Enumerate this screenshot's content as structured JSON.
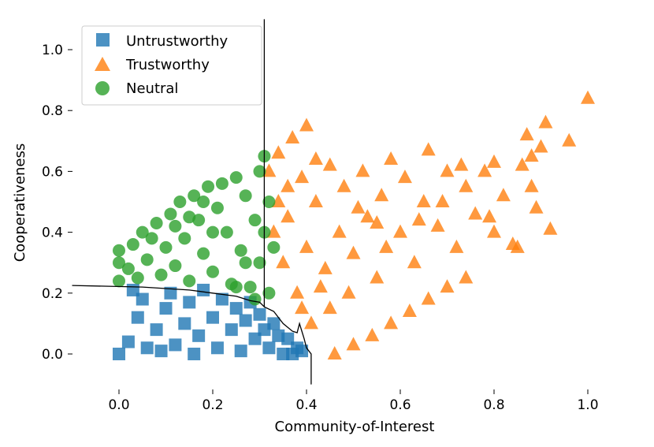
{
  "chart_data": {
    "type": "scatter",
    "title": "",
    "xlabel": "Community-of-Interest",
    "ylabel": "Cooperativeness",
    "xlim": [
      -0.1,
      1.02
    ],
    "ylim": [
      -0.1,
      1.1
    ],
    "xticks": [
      0.0,
      0.2,
      0.4,
      0.6,
      0.8,
      1.0
    ],
    "xtick_labels": [
      "0.0",
      "0.2",
      "0.4",
      "0.6",
      "0.8",
      "1.0"
    ],
    "yticks": [
      0.0,
      0.2,
      0.4,
      0.6,
      0.8,
      1.0
    ],
    "ytick_labels": [
      "0.0",
      "0.2",
      "0.4",
      "0.6",
      "0.8",
      "1.0"
    ],
    "legend_position": "top-left",
    "grid": false,
    "series": [
      {
        "name": "Untrustworthy",
        "marker": "square",
        "color": "#1f77b4",
        "points": [
          [
            0.0,
            0.0
          ],
          [
            0.02,
            0.04
          ],
          [
            0.04,
            0.12
          ],
          [
            0.05,
            0.18
          ],
          [
            0.06,
            0.02
          ],
          [
            0.08,
            0.08
          ],
          [
            0.1,
            0.15
          ],
          [
            0.11,
            0.2
          ],
          [
            0.12,
            0.03
          ],
          [
            0.14,
            0.1
          ],
          [
            0.15,
            0.17
          ],
          [
            0.17,
            0.06
          ],
          [
            0.18,
            0.21
          ],
          [
            0.2,
            0.12
          ],
          [
            0.21,
            0.02
          ],
          [
            0.22,
            0.18
          ],
          [
            0.24,
            0.08
          ],
          [
            0.25,
            0.15
          ],
          [
            0.26,
            0.01
          ],
          [
            0.27,
            0.11
          ],
          [
            0.28,
            0.17
          ],
          [
            0.29,
            0.05
          ],
          [
            0.3,
            0.13
          ],
          [
            0.31,
            0.08
          ],
          [
            0.32,
            0.02
          ],
          [
            0.33,
            0.1
          ],
          [
            0.34,
            0.06
          ],
          [
            0.35,
            0.0
          ],
          [
            0.36,
            0.05
          ],
          [
            0.37,
            0.0
          ],
          [
            0.38,
            0.02
          ],
          [
            0.39,
            0.01
          ],
          [
            0.03,
            0.21
          ],
          [
            0.16,
            0.0
          ],
          [
            0.09,
            0.01
          ]
        ]
      },
      {
        "name": "Trustworthy",
        "marker": "triangle",
        "color": "#ff7f0e",
        "points": [
          [
            0.32,
            0.6
          ],
          [
            0.34,
            0.66
          ],
          [
            0.36,
            0.55
          ],
          [
            0.37,
            0.71
          ],
          [
            0.4,
            0.75
          ],
          [
            0.33,
            0.4
          ],
          [
            0.35,
            0.3
          ],
          [
            0.36,
            0.45
          ],
          [
            0.38,
            0.2
          ],
          [
            0.4,
            0.35
          ],
          [
            0.42,
            0.5
          ],
          [
            0.44,
            0.28
          ],
          [
            0.45,
            0.62
          ],
          [
            0.47,
            0.4
          ],
          [
            0.48,
            0.55
          ],
          [
            0.5,
            0.33
          ],
          [
            0.52,
            0.6
          ],
          [
            0.53,
            0.45
          ],
          [
            0.55,
            0.25
          ],
          [
            0.56,
            0.52
          ],
          [
            0.58,
            0.64
          ],
          [
            0.6,
            0.4
          ],
          [
            0.61,
            0.58
          ],
          [
            0.63,
            0.3
          ],
          [
            0.65,
            0.5
          ],
          [
            0.66,
            0.67
          ],
          [
            0.68,
            0.42
          ],
          [
            0.7,
            0.6
          ],
          [
            0.72,
            0.35
          ],
          [
            0.74,
            0.55
          ],
          [
            0.76,
            0.46
          ],
          [
            0.78,
            0.6
          ],
          [
            0.8,
            0.4
          ],
          [
            0.82,
            0.52
          ],
          [
            0.84,
            0.36
          ],
          [
            0.86,
            0.62
          ],
          [
            0.87,
            0.72
          ],
          [
            0.88,
            0.55
          ],
          [
            0.89,
            0.48
          ],
          [
            0.9,
            0.68
          ],
          [
            0.91,
            0.76
          ],
          [
            0.92,
            0.41
          ],
          [
            0.96,
            0.7
          ],
          [
            1.0,
            0.84
          ],
          [
            0.8,
            0.63
          ],
          [
            0.46,
            0.0
          ],
          [
            0.5,
            0.03
          ],
          [
            0.54,
            0.06
          ],
          [
            0.58,
            0.1
          ],
          [
            0.62,
            0.14
          ],
          [
            0.66,
            0.18
          ],
          [
            0.7,
            0.22
          ],
          [
            0.74,
            0.25
          ],
          [
            0.39,
            0.15
          ],
          [
            0.41,
            0.1
          ],
          [
            0.43,
            0.22
          ],
          [
            0.45,
            0.15
          ],
          [
            0.49,
            0.2
          ],
          [
            0.57,
            0.35
          ],
          [
            0.64,
            0.44
          ],
          [
            0.69,
            0.5
          ],
          [
            0.73,
            0.62
          ],
          [
            0.79,
            0.45
          ],
          [
            0.85,
            0.35
          ],
          [
            0.88,
            0.65
          ],
          [
            0.34,
            0.5
          ],
          [
            0.39,
            0.58
          ],
          [
            0.42,
            0.64
          ],
          [
            0.51,
            0.48
          ],
          [
            0.55,
            0.43
          ]
        ]
      },
      {
        "name": "Neutral",
        "marker": "circle",
        "color": "#2ca02c",
        "points": [
          [
            0.0,
            0.24
          ],
          [
            0.0,
            0.3
          ],
          [
            0.0,
            0.34
          ],
          [
            0.02,
            0.28
          ],
          [
            0.03,
            0.36
          ],
          [
            0.04,
            0.25
          ],
          [
            0.05,
            0.4
          ],
          [
            0.06,
            0.31
          ],
          [
            0.08,
            0.43
          ],
          [
            0.09,
            0.26
          ],
          [
            0.1,
            0.35
          ],
          [
            0.11,
            0.46
          ],
          [
            0.12,
            0.29
          ],
          [
            0.13,
            0.5
          ],
          [
            0.14,
            0.38
          ],
          [
            0.15,
            0.24
          ],
          [
            0.16,
            0.52
          ],
          [
            0.17,
            0.44
          ],
          [
            0.18,
            0.33
          ],
          [
            0.19,
            0.55
          ],
          [
            0.2,
            0.27
          ],
          [
            0.21,
            0.48
          ],
          [
            0.22,
            0.56
          ],
          [
            0.23,
            0.4
          ],
          [
            0.24,
            0.23
          ],
          [
            0.25,
            0.58
          ],
          [
            0.26,
            0.34
          ],
          [
            0.27,
            0.52
          ],
          [
            0.28,
            0.22
          ],
          [
            0.29,
            0.44
          ],
          [
            0.3,
            0.6
          ],
          [
            0.3,
            0.3
          ],
          [
            0.31,
            0.65
          ],
          [
            0.31,
            0.4
          ],
          [
            0.32,
            0.5
          ],
          [
            0.32,
            0.2
          ],
          [
            0.33,
            0.35
          ],
          [
            0.25,
            0.22
          ],
          [
            0.2,
            0.4
          ],
          [
            0.15,
            0.45
          ],
          [
            0.07,
            0.38
          ],
          [
            0.12,
            0.42
          ],
          [
            0.18,
            0.5
          ],
          [
            0.27,
            0.3
          ],
          [
            0.29,
            0.18
          ]
        ]
      }
    ],
    "boundary_line": [
      [
        -0.1,
        0.225
      ],
      [
        0.05,
        0.22
      ],
      [
        0.1,
        0.215
      ],
      [
        0.15,
        0.21
      ],
      [
        0.2,
        0.2
      ],
      [
        0.25,
        0.19
      ],
      [
        0.28,
        0.175
      ],
      [
        0.3,
        0.17
      ],
      [
        0.31,
        0.155
      ],
      [
        0.31,
        0.2
      ],
      [
        0.31,
        1.1
      ],
      [
        0.31,
        0.155
      ],
      [
        0.33,
        0.14
      ],
      [
        0.35,
        0.1
      ],
      [
        0.37,
        0.075
      ],
      [
        0.38,
        0.07
      ],
      [
        0.385,
        0.1
      ],
      [
        0.395,
        0.05
      ],
      [
        0.4,
        0.02
      ],
      [
        0.41,
        0.0
      ],
      [
        0.41,
        -0.1
      ]
    ]
  }
}
